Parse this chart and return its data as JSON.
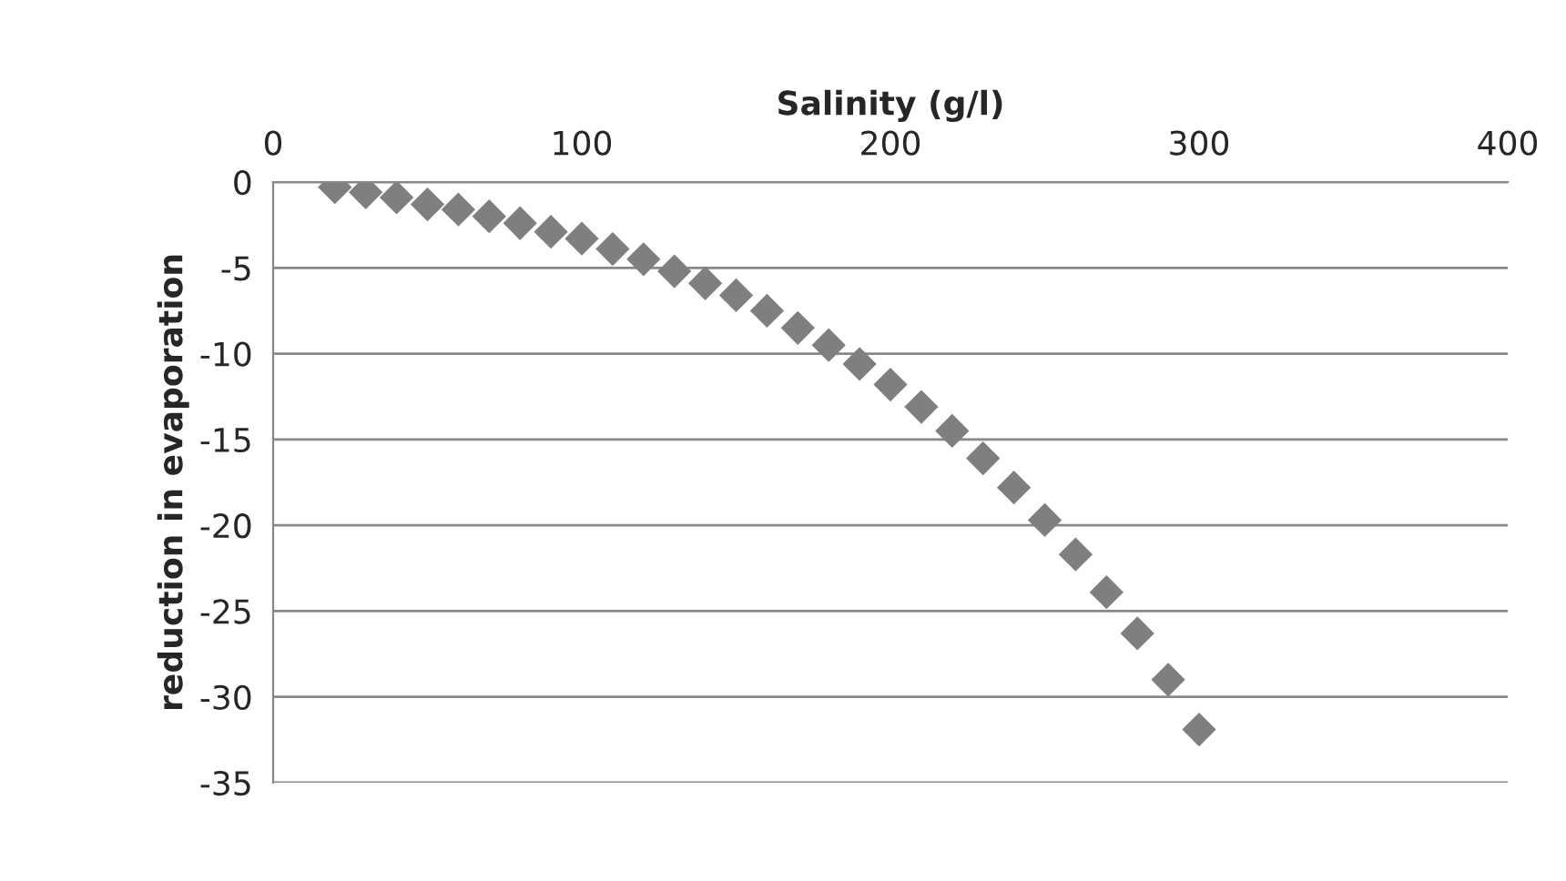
{
  "chart_data": {
    "type": "scatter",
    "xlabel": "Salinity (g/l)",
    "ylabel": "reduction in evaporation",
    "x": [
      20,
      30,
      40,
      50,
      60,
      70,
      80,
      90,
      100,
      110,
      120,
      130,
      140,
      150,
      160,
      170,
      180,
      190,
      200,
      210,
      220,
      230,
      240,
      250,
      260,
      270,
      280,
      290,
      300
    ],
    "series": [
      {
        "color": "#7f7f7f",
        "values": [
          -0.3,
          -0.6,
          -0.9,
          -1.3,
          -1.6,
          -2.0,
          -2.4,
          -2.9,
          -3.3,
          -3.9,
          -4.5,
          -5.2,
          -5.9,
          -6.6,
          -7.5,
          -8.5,
          -9.5,
          -10.6,
          -11.8,
          -13.1,
          -14.5,
          -16.1,
          -17.8,
          -19.7,
          -21.7,
          -23.9,
          -26.3,
          -29.0,
          -31.9
        ]
      }
    ],
    "xlim": [
      0,
      400
    ],
    "xticks": [
      0,
      100,
      200,
      300,
      400
    ],
    "ylim": [
      -35,
      0
    ],
    "yticks": [
      0,
      -5,
      -10,
      -15,
      -20,
      -25,
      -30,
      -35
    ],
    "grid": "y",
    "marker": "diamond"
  }
}
